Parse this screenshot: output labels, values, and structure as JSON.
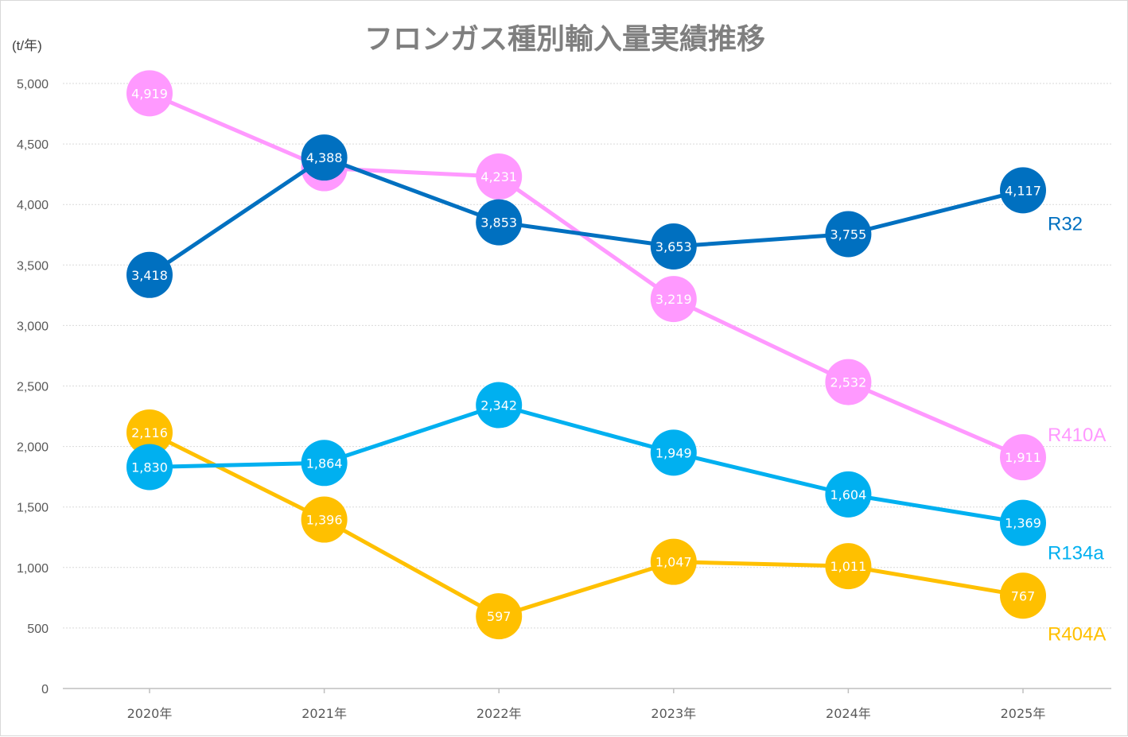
{
  "chart_data": {
    "type": "line",
    "title": "フロンガス種別輸入量実績推移",
    "ylabel": "(t/年)",
    "xlabel": "",
    "categories": [
      "2020年",
      "2021年",
      "2022年",
      "2023年",
      "2024年",
      "2025年"
    ],
    "ylim": [
      0,
      5000
    ],
    "yticks": [
      0,
      500,
      1000,
      1500,
      2000,
      2500,
      3000,
      3500,
      4000,
      4500,
      5000
    ],
    "grid": true,
    "legend": "end-of-line labels",
    "series": [
      {
        "name": "R404A",
        "color": "#FFC000",
        "values": [
          2116,
          1396,
          597,
          1047,
          1011,
          767
        ],
        "labels": [
          "2,116",
          "1,396",
          "597",
          "1,047",
          "1,011",
          "767"
        ]
      },
      {
        "name": "R134a",
        "color": "#00B0F0",
        "values": [
          1830,
          1864,
          2342,
          1949,
          1604,
          1369
        ],
        "labels": [
          "1,830",
          "1,864",
          "2,342",
          "1,949",
          "1,604",
          "1,369"
        ]
      },
      {
        "name": "R410A",
        "color": "#FF99FF",
        "values": [
          4919,
          4300,
          4231,
          3219,
          2532,
          1911
        ],
        "labels": [
          "4,919",
          "4,300",
          "4,231",
          "3,219",
          "2,532",
          "1,911"
        ]
      },
      {
        "name": "R32",
        "color": "#0070C0",
        "values": [
          3418,
          4388,
          3853,
          3653,
          3755,
          4117
        ],
        "labels": [
          "3,418",
          "4,388",
          "3,853",
          "3,653",
          "3,755",
          "4,117"
        ]
      }
    ]
  }
}
